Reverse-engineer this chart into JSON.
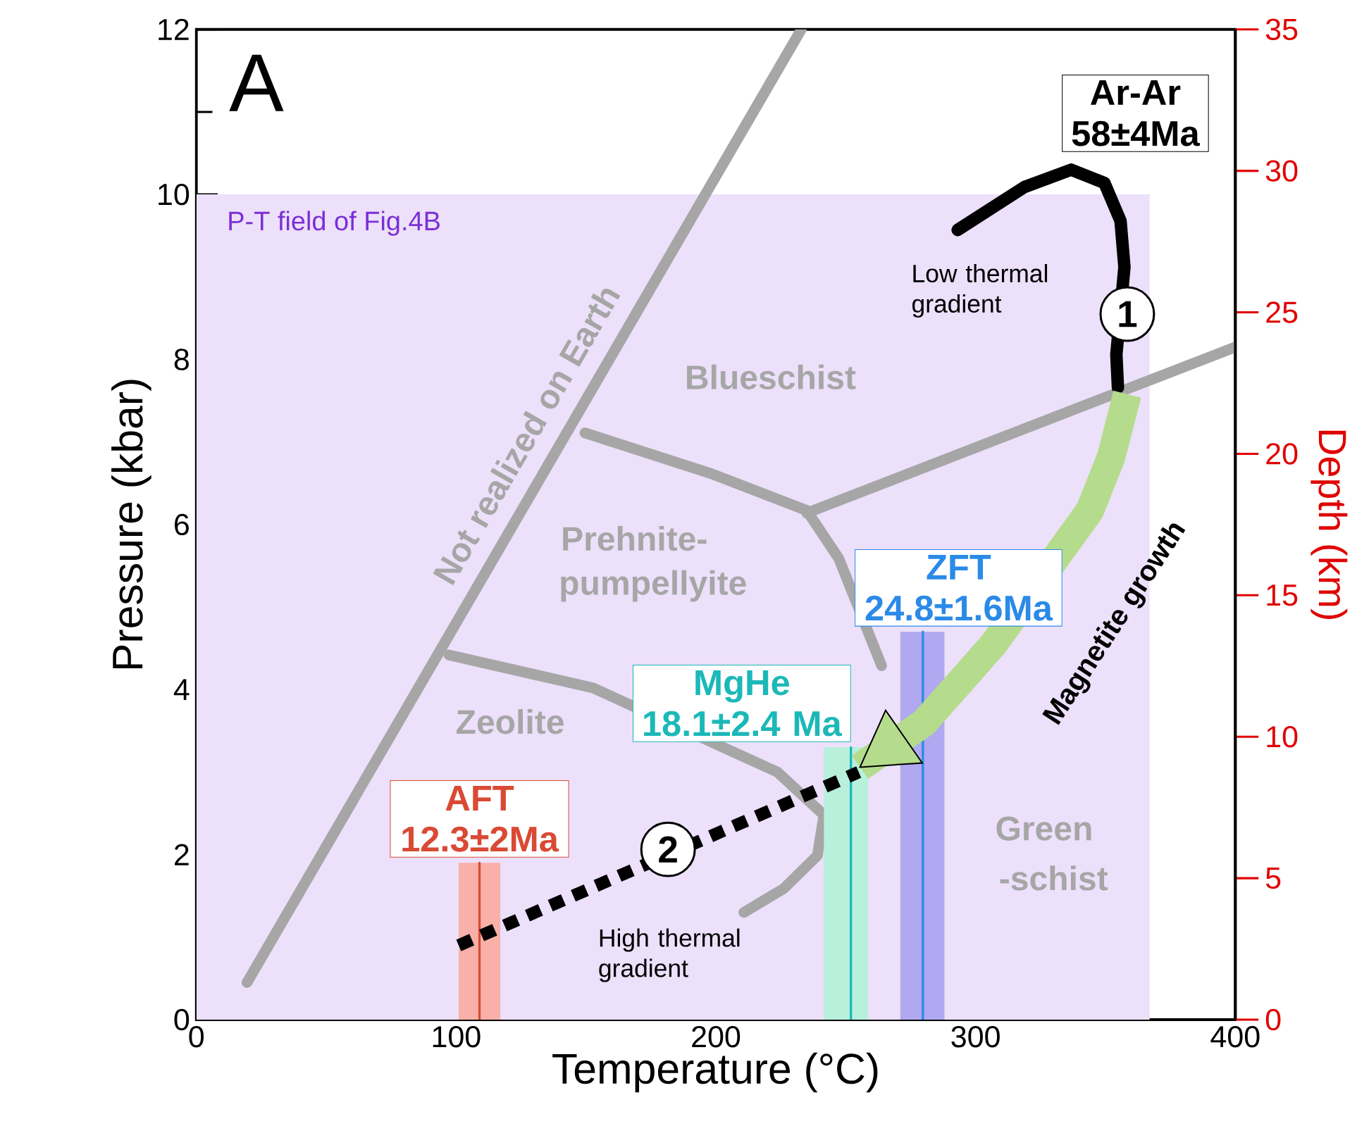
{
  "chart_data": {
    "type": "line",
    "xlabel": "Temperature (°C)",
    "ylabel": "Pressure (kbar)",
    "y2label": "Depth (km)",
    "xlim": [
      0,
      400
    ],
    "xticks": [
      0,
      100,
      200,
      300,
      400
    ],
    "ylim": [
      0,
      12
    ],
    "yticks": [
      0,
      2,
      4,
      6,
      8,
      10,
      12
    ],
    "y2lim": [
      0,
      35
    ],
    "y2ticks": [
      0,
      5,
      10,
      15,
      20,
      25,
      30,
      35
    ],
    "series": [
      {
        "type": "area",
        "name": "P-T field of Fig.4B",
        "color": "#ece0fa",
        "x": [
          0,
          367
        ],
        "values": [
          10,
          10
        ]
      },
      {
        "color": "#a6a6a6",
        "x": [
          19.5,
          232.9
        ],
        "values": [
          0.45,
          12
        ]
      },
      {
        "color": "#a6a6a6",
        "x": [
          149.6,
          197.9,
          235,
          247.3,
          263.8
        ],
        "values": [
          7.11,
          6.62,
          6.17,
          5.59,
          4.29
        ]
      },
      {
        "color": "#a6a6a6",
        "x": [
          235,
          400
        ],
        "values": [
          6.14,
          8.15
        ]
      },
      {
        "color": "#a6a6a6",
        "x": [
          97.2,
          152.7,
          223.7,
          241.6,
          239.1,
          226.2,
          210.8
        ],
        "values": [
          4.42,
          4.02,
          3.0,
          2.48,
          1.99,
          1.59,
          1.3
        ]
      },
      {
        "type": "area",
        "color": "#f8b0a8",
        "x": [
          101,
          117
        ],
        "values": [
          1.9,
          1.9
        ]
      },
      {
        "type": "area",
        "color": "#b8f0dc",
        "x": [
          241.6,
          258.6
        ],
        "values": [
          3.3,
          3.3
        ]
      },
      {
        "type": "area",
        "color": "#b0a8f0",
        "x": [
          271,
          288
        ],
        "values": [
          4.7,
          4.7
        ]
      },
      {
        "name": "AFT 12.3±2Ma",
        "color": "#d94a35",
        "x": [
          109,
          109
        ],
        "values": [
          0,
          1.9
        ]
      },
      {
        "name": "MgHe 18.1±2.4 Ma",
        "color": "#1cb8b8",
        "x": [
          252,
          252
        ],
        "values": [
          0,
          3.3
        ]
      },
      {
        "name": "ZFT 24.8±1.6Ma",
        "color": "#2a8ae8",
        "x": [
          279.7,
          279.7
        ],
        "values": [
          0,
          4.7
        ]
      },
      {
        "name": "Ar-Ar 58±4Ma",
        "color": "#000000",
        "x": [
          293.1,
          318.8,
          336.8,
          349.6,
          355.8,
          357.3,
          354.2,
          354.8
        ],
        "values": [
          9.57,
          10.09,
          10.3,
          10.14,
          9.68,
          9.12,
          8.06,
          7.66
        ]
      },
      {
        "color": "#b5dc8c",
        "x": [
          358.4,
          352.2,
          344,
          306.9,
          280.2,
          255.5
        ],
        "values": [
          7.58,
          6.82,
          6.17,
          4.55,
          3.6,
          3.06
        ]
      },
      {
        "color": "#000000",
        "line_style": "dashed",
        "x": [
          101,
          255
        ],
        "values": [
          0.9,
          3.0
        ]
      }
    ],
    "annotations": [
      "A",
      "Blueschist",
      "Prehnite-",
      "pumpellyite",
      "Zeolite",
      "Green",
      "-schist",
      "Not realized on Earth",
      "Low thermal gradient",
      "High thermal gradient",
      "1",
      "2",
      "Magnetite growth"
    ]
  }
}
